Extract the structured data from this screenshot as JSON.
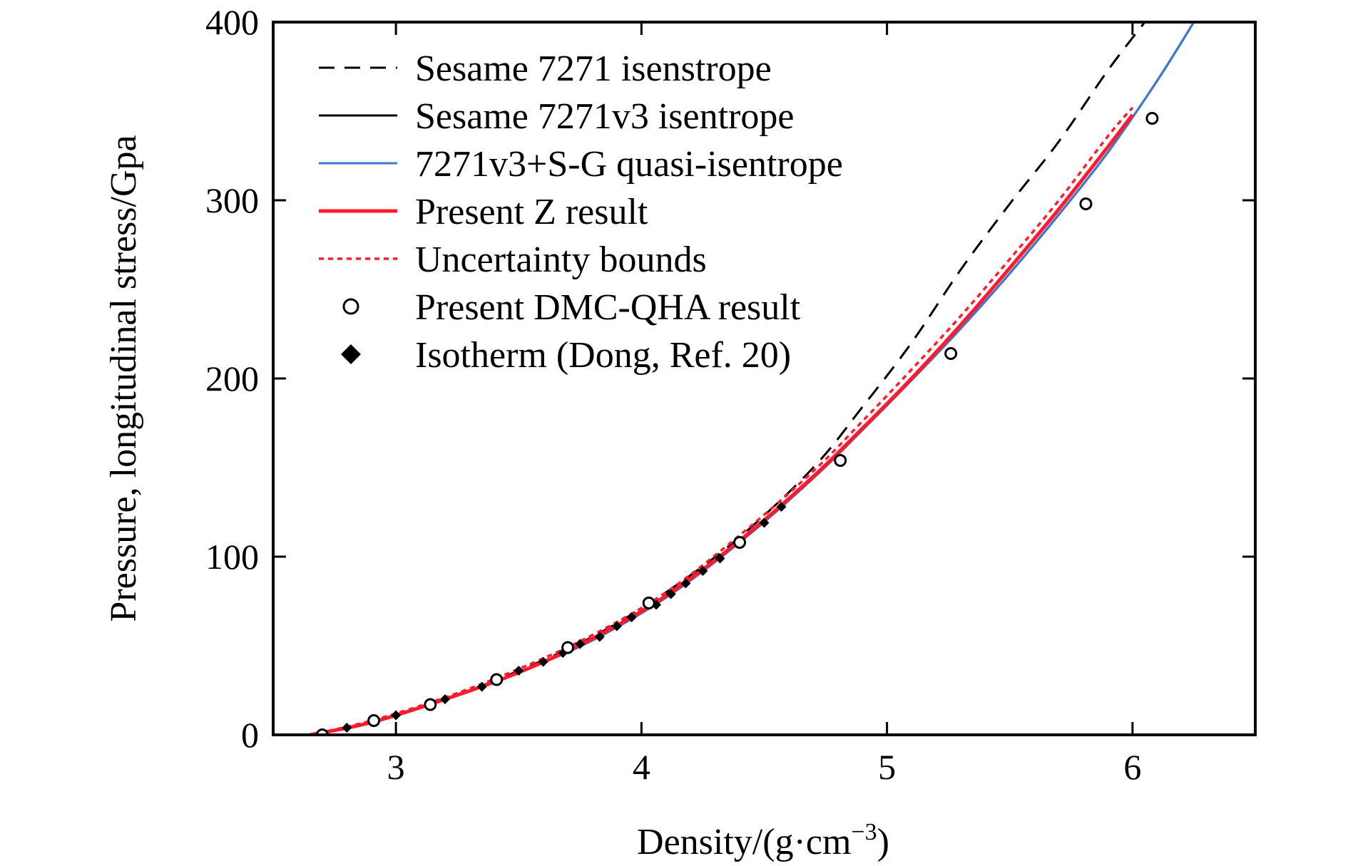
{
  "chart_data": {
    "type": "line",
    "title": "",
    "xlabel": "Density/(g·cm",
    "xlabel_sup": "−3",
    "xlabel_close": ")",
    "ylabel": "Pressure, longitudinal stress/Gpa",
    "xlim": [
      2.5,
      6.5
    ],
    "ylim": [
      0,
      400
    ],
    "x_ticks": [
      3,
      4,
      5,
      6
    ],
    "x_tick_labels": [
      "3",
      "4",
      "5",
      "6"
    ],
    "y_ticks": [
      0,
      100,
      200,
      300,
      400
    ],
    "y_tick_labels": [
      "0",
      "100",
      "200",
      "300",
      "400"
    ],
    "grid": false,
    "legend_position": "top-left",
    "series": [
      {
        "name": "Sesame 7271 isenstrope",
        "style": "dashed",
        "color": "#000000",
        "x": [
          2.65,
          2.9,
          3.2,
          3.5,
          3.8,
          4.1,
          4.4,
          4.7,
          4.9,
          5.1,
          5.3,
          5.5,
          5.7,
          5.9,
          6.05
        ],
        "y": [
          0,
          7,
          20,
          36,
          55,
          80,
          111,
          150,
          184,
          220,
          261,
          298,
          333,
          373,
          400
        ]
      },
      {
        "name": "Sesame 7271v3 isentrope",
        "style": "solid",
        "color": "#000000",
        "x": [
          2.65,
          2.9,
          3.2,
          3.5,
          3.8,
          4.1,
          4.4,
          4.7,
          4.9,
          5.1,
          5.3,
          5.5,
          5.7,
          5.9,
          6.1,
          6.25
        ],
        "y": [
          0,
          7,
          20,
          35,
          53,
          77,
          108,
          144,
          171,
          199,
          228,
          259,
          292,
          327,
          367,
          400
        ]
      },
      {
        "name": "7271v3+S-G quasi-isentrope",
        "style": "solid",
        "color": "#3a78d6",
        "x": [
          2.65,
          2.9,
          3.2,
          3.5,
          3.8,
          4.1,
          4.4,
          4.7,
          4.9,
          5.1,
          5.3,
          5.5,
          5.7,
          5.9,
          6.1,
          6.25
        ],
        "y": [
          0,
          7,
          20,
          35,
          53,
          77,
          108,
          144,
          171,
          199,
          228,
          259,
          292,
          327,
          367,
          400
        ]
      },
      {
        "name": "Present Z result",
        "style": "solid",
        "color": "#ff1a2e",
        "x": [
          2.65,
          2.9,
          3.2,
          3.5,
          3.8,
          4.1,
          4.4,
          4.7,
          4.9,
          5.1,
          5.3,
          5.5,
          5.7,
          5.9,
          6.0
        ],
        "y": [
          0,
          7,
          20,
          35,
          54,
          78,
          109,
          145,
          172,
          200,
          230,
          262,
          295,
          330,
          348
        ]
      },
      {
        "name": "Uncertainty bounds",
        "style": "dotted",
        "color": "#ff1a2e",
        "x": [
          2.65,
          2.9,
          3.2,
          3.5,
          3.8,
          4.1,
          4.4,
          4.7,
          4.9,
          5.1,
          5.3,
          5.5,
          5.7,
          5.9,
          6.0
        ],
        "y": [
          0,
          8,
          21,
          37,
          56,
          80,
          112,
          148,
          176,
          205,
          235,
          267,
          300,
          336,
          352
        ]
      },
      {
        "name": "Present DMC-QHA result",
        "style": "marker-open-circle",
        "color": "#000000",
        "x": [
          2.7,
          2.91,
          3.14,
          3.41,
          3.7,
          4.03,
          4.4,
          4.81,
          5.26,
          5.81,
          6.08
        ],
        "y": [
          0,
          8,
          17,
          31,
          49,
          74,
          108,
          154,
          214,
          298,
          346
        ]
      },
      {
        "name": "Isotherm (Dong, Ref. 20)",
        "style": "marker-filled-diamond",
        "color": "#000000",
        "x": [
          2.8,
          3.0,
          3.2,
          3.35,
          3.5,
          3.6,
          3.68,
          3.75,
          3.83,
          3.9,
          3.96,
          4.06,
          4.12,
          4.18,
          4.25,
          4.32,
          4.4,
          4.5,
          4.57
        ],
        "y": [
          4,
          11,
          20,
          27,
          36,
          41,
          46,
          51,
          55,
          61,
          66,
          73,
          79,
          85,
          92,
          99,
          107,
          119,
          128
        ]
      }
    ]
  }
}
